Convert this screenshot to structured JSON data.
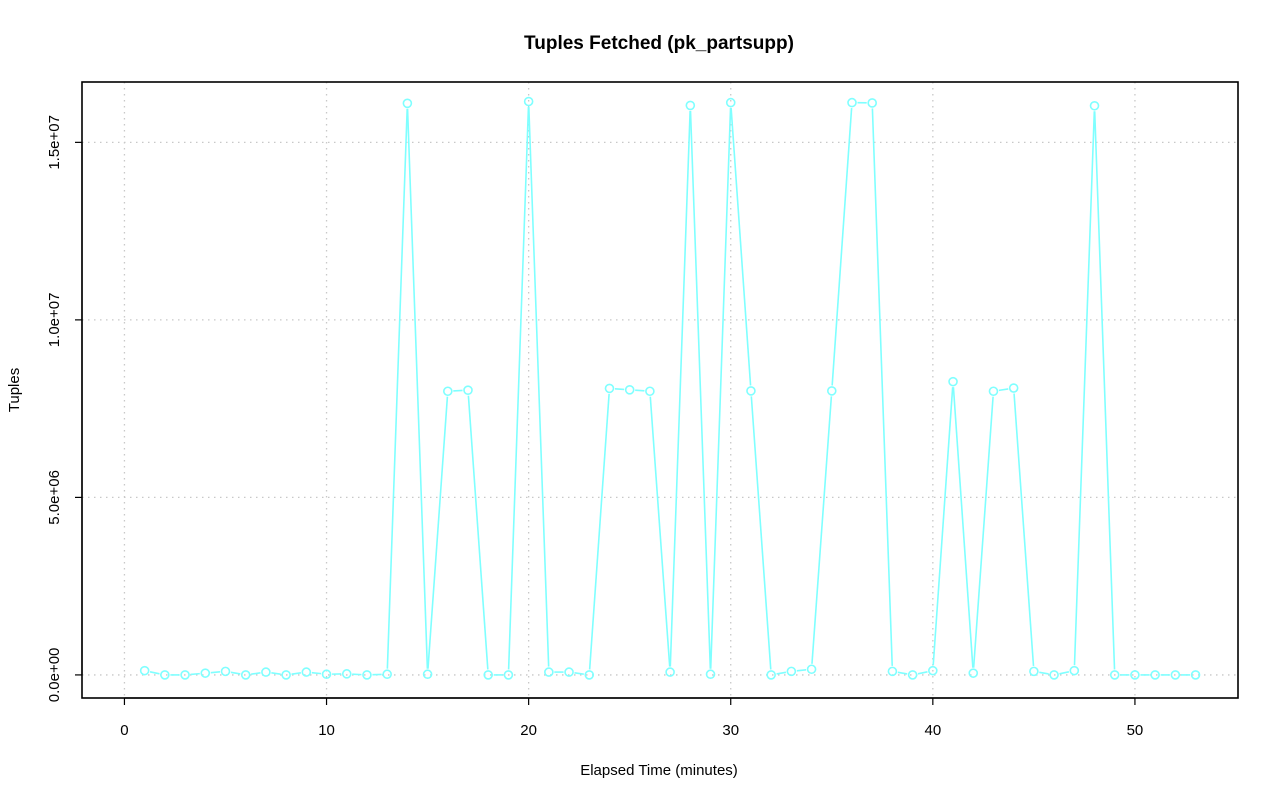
{
  "chart_data": {
    "type": "line",
    "title": "Tuples Fetched (pk_partsupp)",
    "xlabel": "Elapsed Time (minutes)",
    "ylabel": "Tuples",
    "xlim": [
      -2.1,
      55.1
    ],
    "ylim": [
      -650000,
      16700000
    ],
    "grid": true,
    "markers": "open-circle",
    "series_color": "#7fffff",
    "x_ticks": [
      0,
      10,
      20,
      30,
      40,
      50
    ],
    "x_tick_labels": [
      "0",
      "10",
      "20",
      "30",
      "40",
      "50"
    ],
    "y_ticks": [
      0,
      5000000,
      10000000,
      15000000
    ],
    "y_tick_labels": [
      "0.0e+00",
      "5.0e+06",
      "1.0e+07",
      "1.5e+07"
    ],
    "series": [
      {
        "x": [
          1,
          2,
          3,
          4,
          5,
          6,
          7,
          8,
          9,
          10,
          11,
          12,
          13,
          14,
          15,
          16,
          17,
          18,
          19,
          20,
          21,
          22,
          23,
          24,
          25,
          26,
          27,
          28,
          29,
          30,
          31,
          32,
          33,
          34,
          35,
          36,
          37,
          38,
          39,
          40,
          41,
          42,
          43,
          44,
          45,
          46,
          47,
          48,
          49,
          50,
          51,
          52,
          53
        ],
        "values": [
          120000,
          0,
          0,
          50000,
          100000,
          0,
          80000,
          0,
          80000,
          20000,
          30000,
          0,
          20000,
          16100000,
          20000,
          7990000,
          8020000,
          0,
          0,
          16150000,
          80000,
          80000,
          0,
          8070000,
          8030000,
          7990000,
          80000,
          16040000,
          20000,
          16120000,
          8000000,
          0,
          100000,
          160000,
          8000000,
          16120000,
          16110000,
          100000,
          0,
          120000,
          8260000,
          50000,
          7990000,
          8080000,
          100000,
          0,
          120000,
          16030000,
          0,
          0,
          0,
          0,
          0
        ]
      }
    ]
  }
}
